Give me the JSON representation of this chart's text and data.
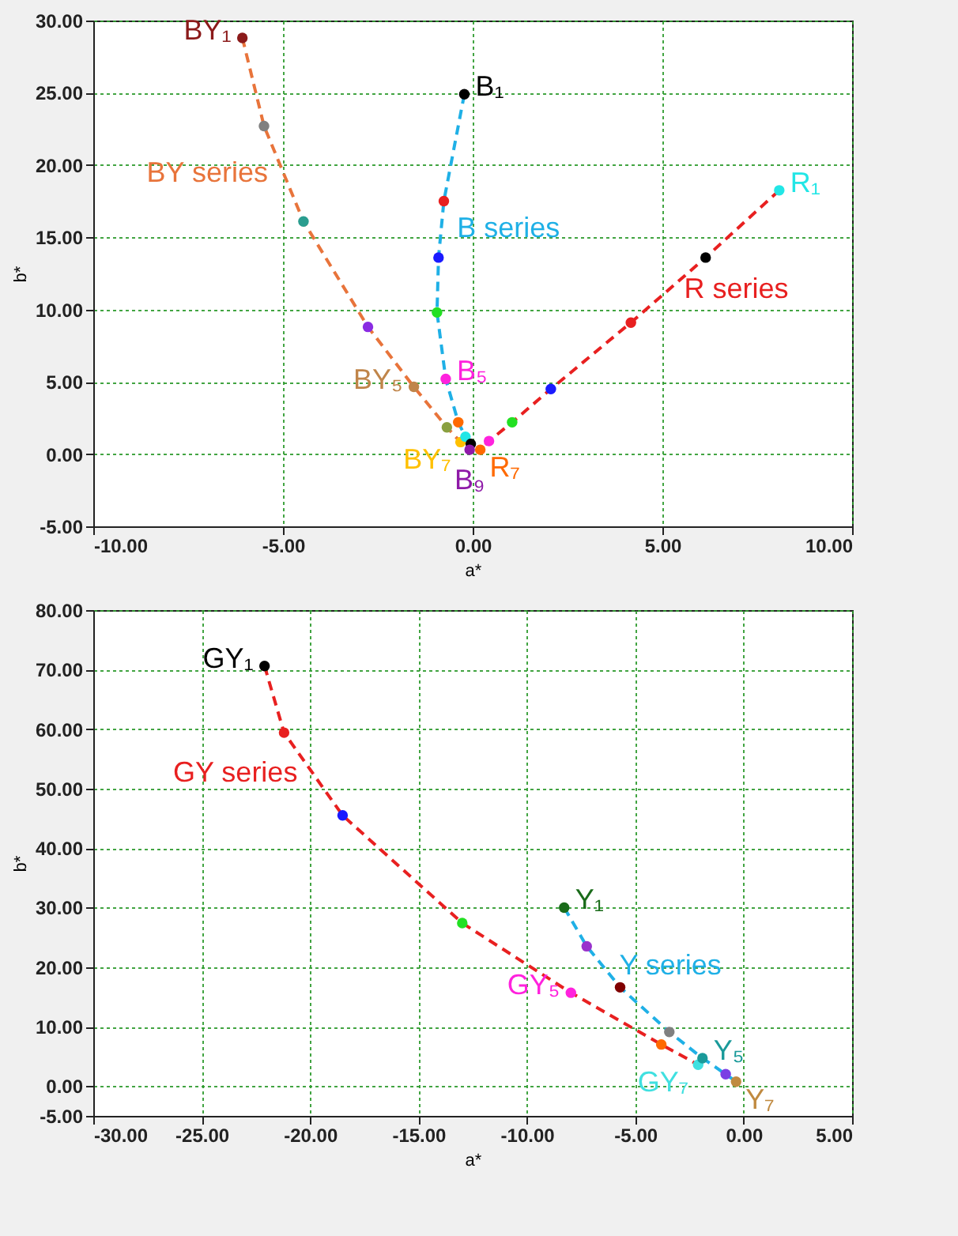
{
  "chart_data": [
    {
      "type": "line",
      "marker": "circle",
      "line_style": "dashed",
      "grid": true,
      "xlabel": "a*",
      "ylabel": "b*",
      "xlim": [
        -10,
        10
      ],
      "ylim": [
        -5,
        30
      ],
      "xticks": [
        {
          "value": -10,
          "label": "-10.00"
        },
        {
          "value": -5,
          "label": "-5.00"
        },
        {
          "value": 0,
          "label": "0.00"
        },
        {
          "value": 5,
          "label": "5.00"
        },
        {
          "value": 10,
          "label": "10.00"
        }
      ],
      "yticks": [
        {
          "value": -5,
          "label": "-5.00"
        },
        {
          "value": 0,
          "label": "0.00"
        },
        {
          "value": 5,
          "label": "5.00"
        },
        {
          "value": 10,
          "label": "10.00"
        },
        {
          "value": 15,
          "label": "15.00"
        },
        {
          "value": 20,
          "label": "20.00"
        },
        {
          "value": 25,
          "label": "25.00"
        },
        {
          "value": 30,
          "label": "30.00"
        }
      ],
      "series": [
        {
          "name": "BY series",
          "color": "#e8743b",
          "x": [
            -6.07,
            -5.5,
            -4.46,
            -2.76,
            -1.55,
            -0.68,
            -0.32
          ],
          "values": [
            28.8,
            22.7,
            16.1,
            8.8,
            4.65,
            1.85,
            0.83
          ],
          "colors": [
            "#8b1a1a",
            "#808080",
            "#2a9d8f",
            "#8a2be2",
            "#c0854a",
            "#8aa040",
            "#ffc000"
          ],
          "value_labels": [
            "BY₁",
            null,
            null,
            null,
            "BY₅",
            null,
            "BY₇"
          ]
        },
        {
          "name": "B series",
          "color": "#1fb0e6",
          "x": [
            -0.22,
            -0.76,
            -0.9,
            -0.94,
            -0.71,
            -0.38,
            -0.19,
            -0.05,
            -0.08
          ],
          "values": [
            24.9,
            17.5,
            13.6,
            9.8,
            5.2,
            2.2,
            1.2,
            0.7,
            0.3
          ],
          "colors": [
            "#000000",
            "#e82020",
            "#1a1aff",
            "#22e022",
            "#ff22dd",
            "#ff6a00",
            "#22e6e6",
            "#000000",
            "#8e1aa8"
          ],
          "value_labels": [
            "B₁",
            null,
            null,
            null,
            "B₅",
            null,
            null,
            null,
            "B₉"
          ]
        },
        {
          "name": "R series",
          "color": "#e82020",
          "x": [
            8.08,
            6.14,
            4.17,
            2.06,
            1.04,
            0.43,
            0.2
          ],
          "values": [
            18.25,
            13.6,
            9.1,
            4.5,
            2.2,
            0.9,
            0.3
          ],
          "colors": [
            "#22e6e6",
            "#000000",
            "#e82020",
            "#1a1aff",
            "#22e022",
            "#ff22dd",
            "#ff6a00"
          ],
          "value_labels": [
            "R₁",
            null,
            null,
            null,
            null,
            null,
            "R₇"
          ]
        }
      ]
    },
    {
      "type": "line",
      "marker": "circle",
      "line_style": "dashed",
      "grid": true,
      "xlabel": "a*",
      "ylabel": "b*",
      "xlim": [
        -30,
        5
      ],
      "ylim": [
        -5,
        80
      ],
      "xticks": [
        {
          "value": -30,
          "label": "-30.00"
        },
        {
          "value": -25,
          "label": "-25.00"
        },
        {
          "value": -20,
          "label": "-20.00"
        },
        {
          "value": -15,
          "label": "-15.00"
        },
        {
          "value": -10,
          "label": "-10.00"
        },
        {
          "value": -5,
          "label": "-5.00"
        },
        {
          "value": 0,
          "label": "0.00"
        },
        {
          "value": 5,
          "label": "5.00"
        }
      ],
      "yticks": [
        {
          "value": -5,
          "label": "-5.00"
        },
        {
          "value": 0,
          "label": "0.00"
        },
        {
          "value": 10,
          "label": "10.00"
        },
        {
          "value": 20,
          "label": "20.00"
        },
        {
          "value": 30,
          "label": "30.00"
        },
        {
          "value": 40,
          "label": "40.00"
        },
        {
          "value": 50,
          "label": "50.00"
        },
        {
          "value": 60,
          "label": "60.00"
        },
        {
          "value": 70,
          "label": "70.00"
        },
        {
          "value": 80,
          "label": "80.00"
        }
      ],
      "series": [
        {
          "name": "GY series",
          "color": "#e82020",
          "x": [
            -22.1,
            -21.2,
            -18.5,
            -12.98,
            -7.97,
            -3.8,
            -2.1
          ],
          "values": [
            70.6,
            59.4,
            45.5,
            27.4,
            15.7,
            7.0,
            3.6
          ],
          "colors": [
            "#000000",
            "#e82020",
            "#1a1aff",
            "#22e022",
            "#ff22dd",
            "#ff6a00",
            "#40e0e0"
          ],
          "value_labels": [
            "GY₁",
            null,
            null,
            null,
            "GY₅",
            null,
            "GY₇"
          ]
        },
        {
          "name": "Y series",
          "color": "#1fb0e6",
          "x": [
            -8.28,
            -7.24,
            -5.7,
            -3.43,
            -1.9,
            -0.83,
            -0.35
          ],
          "values": [
            30.0,
            23.5,
            16.6,
            9.1,
            4.7,
            2.0,
            0.75
          ],
          "colors": [
            "#1a6b1a",
            "#9932cc",
            "#800000",
            "#808080",
            "#1a9a9a",
            "#7b3fe4",
            "#c08a40"
          ],
          "value_labels": [
            "Y₁",
            null,
            null,
            null,
            "Y₅",
            null,
            "Y₇"
          ]
        }
      ]
    }
  ]
}
